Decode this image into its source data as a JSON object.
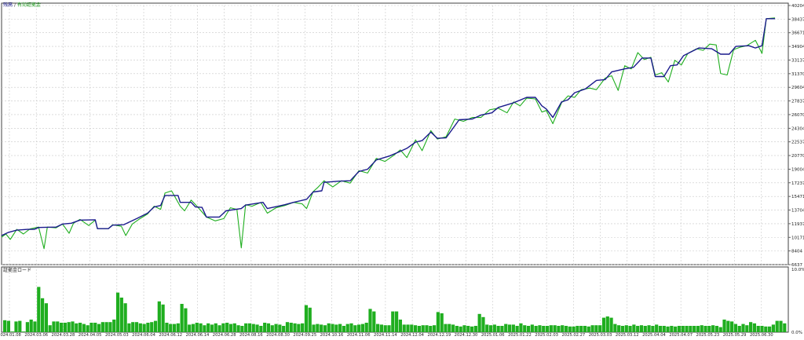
{
  "legend": {
    "balance_label": "残高",
    "separator": "/",
    "equity_label": "有効証拠金"
  },
  "sub_legend": {
    "label": "証拠金ロード"
  },
  "colors": {
    "balance": "#1a1a8c",
    "equity": "#1fae1f",
    "load_bars": "#1fae1f",
    "grid": "#c8c8c8",
    "axis": "#404040"
  },
  "chart_data": [
    {
      "type": "line",
      "y_ticks": [
        40204,
        38437,
        36671,
        34904,
        33137,
        31370,
        29604,
        27837,
        26070,
        24304,
        22537,
        20770,
        19004,
        17237,
        15471,
        13704,
        11937,
        10171,
        8404,
        6637
      ],
      "ylim": [
        6637,
        40204
      ],
      "x_ticks": [
        "2024.01.08",
        "2024.03.06",
        "2024.03.28",
        "2024.04.05",
        "2024.05.03",
        "2024.06.04",
        "2024.06.12",
        "2024.06.14",
        "2024.06.28",
        "2024.08.16",
        "2024.08.30",
        "2024.09.25",
        "2024.10.16",
        "2024.11.06",
        "2024.11.14",
        "2024.12.04",
        "2024.12.19",
        "2024.12.30",
        "2025.01.06",
        "2025.01.22",
        "2025.02.03",
        "2025.02.27",
        "2025.03.03",
        "2025.03.12",
        "2025.04.04",
        "2025.04.07",
        "2025.05.23",
        "2025.05.29",
        "2025.06.30"
      ],
      "grid": true,
      "series": [
        {
          "name": "残高",
          "points": [
            [
              0,
              10400
            ],
            [
              0.3,
              10800
            ],
            [
              0.7,
              11100
            ],
            [
              1.2,
              11200
            ],
            [
              1.5,
              11200
            ],
            [
              1.7,
              11450
            ],
            [
              2.5,
              11500
            ],
            [
              2.8,
              11900
            ],
            [
              3.2,
              12000
            ],
            [
              3.6,
              12400
            ],
            [
              4.3,
              12450
            ],
            [
              4.4,
              11300
            ],
            [
              4.9,
              11300
            ],
            [
              5.1,
              11750
            ],
            [
              5.6,
              11800
            ],
            [
              6.2,
              12600
            ],
            [
              6.7,
              13300
            ],
            [
              7.0,
              14100
            ],
            [
              7.3,
              14300
            ],
            [
              7.5,
              15600
            ],
            [
              8.1,
              15600
            ],
            [
              8.2,
              14700
            ],
            [
              8.7,
              14700
            ],
            [
              8.9,
              14100
            ],
            [
              9.2,
              14050
            ],
            [
              9.4,
              12800
            ],
            [
              10.0,
              12800
            ],
            [
              10.3,
              13600
            ],
            [
              11.0,
              13900
            ],
            [
              11.2,
              14350
            ],
            [
              12.0,
              14700
            ],
            [
              12.2,
              13900
            ],
            [
              12.7,
              14200
            ],
            [
              13.0,
              14400
            ],
            [
              13.4,
              14700
            ],
            [
              14.0,
              15100
            ],
            [
              14.3,
              16050
            ],
            [
              14.7,
              16200
            ],
            [
              14.8,
              17300
            ],
            [
              15.5,
              17450
            ],
            [
              16.0,
              17500
            ],
            [
              16.4,
              18700
            ],
            [
              16.8,
              19000
            ],
            [
              17.2,
              20200
            ],
            [
              17.8,
              20700
            ],
            [
              18.3,
              21300
            ],
            [
              18.6,
              21700
            ],
            [
              19.0,
              22500
            ],
            [
              19.3,
              22700
            ],
            [
              19.7,
              23800
            ],
            [
              20.0,
              23000
            ],
            [
              20.4,
              23050
            ],
            [
              21.0,
              25400
            ],
            [
              21.6,
              25500
            ],
            [
              22.0,
              26000
            ],
            [
              22.5,
              26300
            ],
            [
              22.8,
              27000
            ],
            [
              23.5,
              27600
            ],
            [
              24.1,
              28300
            ],
            [
              24.5,
              28300
            ],
            [
              24.8,
              27200
            ],
            [
              25.0,
              26800
            ],
            [
              25.3,
              25700
            ],
            [
              25.7,
              27700
            ],
            [
              26.0,
              28000
            ],
            [
              26.3,
              28900
            ],
            [
              26.8,
              29400
            ],
            [
              27.3,
              30500
            ],
            [
              27.7,
              30600
            ],
            [
              28.0,
              31600
            ],
            [
              28.6,
              32000
            ],
            [
              29.0,
              32200
            ],
            [
              29.4,
              33400
            ],
            [
              29.8,
              33400
            ],
            [
              30.0,
              31000
            ],
            [
              30.4,
              31000
            ],
            [
              30.7,
              32400
            ],
            [
              31.0,
              32500
            ],
            [
              31.3,
              33700
            ],
            [
              32.0,
              34700
            ],
            [
              32.6,
              34600
            ],
            [
              33.0,
              33900
            ],
            [
              33.4,
              33900
            ],
            [
              33.7,
              34900
            ],
            [
              34.3,
              35000
            ],
            [
              34.6,
              34700
            ],
            [
              34.9,
              35000
            ],
            [
              35.1,
              38500
            ],
            [
              35.5,
              38500
            ]
          ]
        },
        {
          "name": "有効証拠金",
          "points": [
            [
              0,
              10200
            ],
            [
              0.2,
              10600
            ],
            [
              0.4,
              9900
            ],
            [
              0.7,
              11200
            ],
            [
              1.0,
              10600
            ],
            [
              1.3,
              11250
            ],
            [
              1.7,
              11500
            ],
            [
              1.95,
              8700
            ],
            [
              2.1,
              11500
            ],
            [
              2.5,
              11400
            ],
            [
              2.8,
              11900
            ],
            [
              3.1,
              10700
            ],
            [
              3.3,
              12000
            ],
            [
              3.6,
              12500
            ],
            [
              4.0,
              11700
            ],
            [
              4.3,
              12400
            ],
            [
              4.4,
              11300
            ],
            [
              4.9,
              11300
            ],
            [
              5.1,
              11800
            ],
            [
              5.5,
              11600
            ],
            [
              5.7,
              10400
            ],
            [
              6.0,
              11900
            ],
            [
              6.3,
              12500
            ],
            [
              6.7,
              13200
            ],
            [
              7.0,
              14200
            ],
            [
              7.3,
              13800
            ],
            [
              7.5,
              15900
            ],
            [
              7.8,
              16200
            ],
            [
              8.2,
              14200
            ],
            [
              8.4,
              13600
            ],
            [
              8.7,
              15000
            ],
            [
              9.0,
              14100
            ],
            [
              9.4,
              12800
            ],
            [
              9.8,
              12300
            ],
            [
              10.2,
              12600
            ],
            [
              10.5,
              14000
            ],
            [
              10.8,
              13800
            ],
            [
              11.0,
              8800
            ],
            [
              11.2,
              14400
            ],
            [
              11.5,
              14200
            ],
            [
              11.9,
              14700
            ],
            [
              12.2,
              13300
            ],
            [
              12.6,
              14000
            ],
            [
              13.0,
              14300
            ],
            [
              13.4,
              14700
            ],
            [
              13.8,
              14500
            ],
            [
              14.0,
              13900
            ],
            [
              14.3,
              16100
            ],
            [
              14.5,
              16600
            ],
            [
              14.8,
              17500
            ],
            [
              15.2,
              16700
            ],
            [
              15.6,
              17500
            ],
            [
              16.0,
              17200
            ],
            [
              16.4,
              18800
            ],
            [
              16.8,
              18500
            ],
            [
              17.2,
              20400
            ],
            [
              17.6,
              20000
            ],
            [
              18.0,
              20800
            ],
            [
              18.3,
              21500
            ],
            [
              18.6,
              20500
            ],
            [
              19.0,
              22800
            ],
            [
              19.3,
              21400
            ],
            [
              19.7,
              24000
            ],
            [
              20.0,
              22900
            ],
            [
              20.4,
              23200
            ],
            [
              20.8,
              25500
            ],
            [
              21.2,
              25200
            ],
            [
              21.6,
              25700
            ],
            [
              22.0,
              25700
            ],
            [
              22.4,
              26700
            ],
            [
              22.8,
              26900
            ],
            [
              23.2,
              26300
            ],
            [
              23.5,
              27700
            ],
            [
              23.8,
              27200
            ],
            [
              24.1,
              28200
            ],
            [
              24.5,
              28100
            ],
            [
              24.8,
              26400
            ],
            [
              25.0,
              26600
            ],
            [
              25.3,
              24900
            ],
            [
              25.7,
              27600
            ],
            [
              26.0,
              28500
            ],
            [
              26.3,
              28300
            ],
            [
              26.6,
              29300
            ],
            [
              27.0,
              29500
            ],
            [
              27.3,
              29300
            ],
            [
              27.7,
              30800
            ],
            [
              28.0,
              31100
            ],
            [
              28.3,
              29200
            ],
            [
              28.6,
              32400
            ],
            [
              28.9,
              32000
            ],
            [
              29.2,
              34100
            ],
            [
              29.5,
              33200
            ],
            [
              29.8,
              33500
            ],
            [
              30.0,
              31200
            ],
            [
              30.3,
              31500
            ],
            [
              30.6,
              30300
            ],
            [
              30.9,
              33100
            ],
            [
              31.2,
              32500
            ],
            [
              31.5,
              34000
            ],
            [
              31.9,
              34600
            ],
            [
              32.2,
              34400
            ],
            [
              32.5,
              35200
            ],
            [
              32.8,
              35100
            ],
            [
              33.0,
              31400
            ],
            [
              33.3,
              31200
            ],
            [
              33.6,
              34500
            ],
            [
              33.9,
              34800
            ],
            [
              34.2,
              35000
            ],
            [
              34.6,
              35700
            ],
            [
              34.9,
              34000
            ],
            [
              35.1,
              38500
            ],
            [
              35.5,
              38600
            ]
          ]
        }
      ]
    },
    {
      "type": "bar",
      "y_ticks": [
        "10.0%",
        "0.0%"
      ],
      "ylim": [
        0,
        10
      ],
      "values": [
        1.9,
        1.8,
        0.1,
        1.7,
        1.8,
        0.1,
        1.6,
        2.0,
        1.7,
        7.2,
        5.4,
        4.6,
        1.1,
        1.7,
        1.7,
        1.5,
        1.5,
        1.6,
        1.7,
        1.4,
        1.5,
        1.3,
        1.1,
        1.5,
        1.5,
        1.3,
        1.6,
        1.6,
        1.6,
        2.0,
        6.3,
        5.5,
        4.6,
        1.4,
        1.6,
        1.6,
        1.4,
        1.3,
        1.5,
        1.6,
        1.8,
        4.9,
        4.4,
        1.5,
        1.3,
        1.3,
        1.4,
        4.5,
        3.8,
        1.2,
        1.3,
        1.5,
        1.4,
        1.1,
        1.4,
        1.2,
        1.4,
        1.1,
        1.4,
        1.5,
        1.3,
        1.4,
        1.1,
        1.0,
        1.4,
        1.4,
        1.3,
        1.2,
        1.0,
        1.5,
        1.4,
        1.1,
        1.3,
        1.2,
        1.0,
        1.6,
        1.5,
        1.4,
        1.3,
        1.4,
        4.3,
        3.9,
        1.2,
        1.3,
        1.2,
        1.1,
        1.4,
        1.3,
        1.2,
        1.3,
        1.0,
        1.3,
        1.4,
        1.1,
        1.2,
        1.3,
        1.5,
        3.7,
        3.3,
        1.3,
        1.2,
        1.1,
        1.1,
        3.3,
        3.3,
        2.0,
        1.2,
        1.2,
        1.2,
        1.1,
        1.0,
        1.1,
        1.1,
        1.0,
        1.1,
        3.2,
        3.0,
        1.3,
        1.3,
        1.2,
        1.0,
        0.9,
        1.1,
        1.0,
        0.9,
        1.0,
        2.9,
        2.4,
        1.2,
        1.1,
        1.2,
        1.0,
        1.0,
        1.3,
        1.2,
        1.2,
        1.0,
        1.4,
        1.1,
        1.0,
        1.2,
        1.0,
        1.1,
        1.0,
        1.0,
        1.1,
        1.1,
        1.0,
        1.1,
        1.0,
        0.9,
        0.9,
        1.0,
        1.0,
        1.0,
        0.9,
        1.1,
        1.1,
        1.1,
        2.3,
        2.5,
        2.3,
        1.3,
        1.1,
        1.0,
        1.1,
        1.0,
        1.2,
        1.0,
        1.1,
        1.0,
        1.1,
        1.0,
        1.2,
        1.0,
        1.0,
        0.9,
        1.0,
        0.9,
        1.0,
        1.0,
        1.0,
        1.0,
        1.0,
        1.0,
        1.1,
        1.0,
        1.0,
        1.1,
        1.0,
        0.8,
        2.0,
        1.8,
        1.7,
        1.3,
        1.0,
        1.3,
        1.1,
        1.6,
        1.4,
        1.0,
        1.0,
        0.9,
        0.9,
        1.2,
        1.8,
        1.8,
        1.4
      ]
    }
  ]
}
